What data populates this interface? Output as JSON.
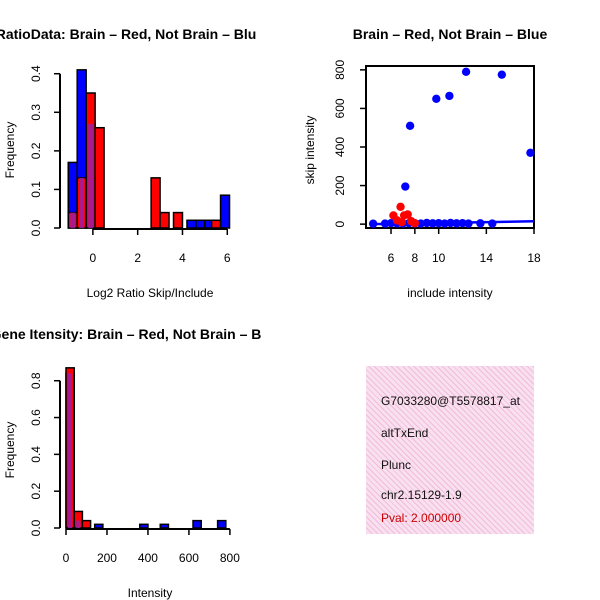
{
  "chart_data": [
    {
      "type": "histogram",
      "title": "RatioData: Brain – Red, Not Brain – Blu",
      "xlabel": "Log2 Ratio Skip/Include",
      "ylabel": "Frequency",
      "xlim": [
        -1.2,
        6.3
      ],
      "ylim": [
        0,
        0.42
      ],
      "xticks": [
        0,
        2,
        4,
        6
      ],
      "yticks": [
        0.0,
        0.1,
        0.2,
        0.3,
        0.4
      ],
      "series": [
        {
          "name": "Not Brain",
          "color": "#0000ff",
          "bins": [
            [
              -1.1,
              -0.7,
              0.17
            ],
            [
              -0.7,
              -0.3,
              0.41
            ],
            [
              -0.3,
              0.1,
              0.27
            ],
            [
              4.2,
              4.6,
              0.02
            ],
            [
              4.6,
              5.0,
              0.02
            ],
            [
              5.0,
              5.4,
              0.02
            ],
            [
              5.7,
              6.1,
              0.085
            ]
          ]
        },
        {
          "name": "Brain",
          "color": "#ff0000",
          "bins": [
            [
              -1.1,
              -0.7,
              0.04
            ],
            [
              -0.7,
              -0.3,
              0.13
            ],
            [
              -0.3,
              0.1,
              0.35
            ],
            [
              0.1,
              0.5,
              0.26
            ],
            [
              2.6,
              3.0,
              0.13
            ],
            [
              3.0,
              3.4,
              0.04
            ],
            [
              3.6,
              4.0,
              0.04
            ],
            [
              5.3,
              5.7,
              0.02
            ]
          ]
        }
      ]
    },
    {
      "type": "scatter",
      "title": "Brain – Red, Not Brain – Blue",
      "xlabel": "include intensity",
      "ylabel": "skip intensity",
      "xlim": [
        3.9,
        18.0
      ],
      "ylim": [
        -20,
        820
      ],
      "xticks": [
        6,
        8,
        10,
        14,
        18
      ],
      "yticks": [
        0,
        200,
        400,
        600,
        800
      ],
      "series": [
        {
          "name": "Not Brain",
          "color": "#0000ff",
          "points": [
            [
              4.5,
              2
            ],
            [
              5.5,
              3
            ],
            [
              6.0,
              5
            ],
            [
              6.5,
              4
            ],
            [
              7.0,
              3
            ],
            [
              7.5,
              5
            ],
            [
              8.0,
              4
            ],
            [
              8.5,
              3
            ],
            [
              9.0,
              6
            ],
            [
              9.5,
              4
            ],
            [
              10.0,
              5
            ],
            [
              10.5,
              3
            ],
            [
              11.0,
              6
            ],
            [
              11.5,
              4
            ],
            [
              12.0,
              5
            ],
            [
              12.5,
              3
            ],
            [
              13.5,
              4
            ],
            [
              14.5,
              3
            ],
            [
              7.2,
              195
            ],
            [
              7.6,
              510
            ],
            [
              9.8,
              650
            ],
            [
              10.9,
              665
            ],
            [
              12.3,
              790
            ],
            [
              15.3,
              775
            ],
            [
              17.7,
              370
            ]
          ]
        },
        {
          "name": "Brain",
          "color": "#ff0000",
          "points": [
            [
              6.2,
              45
            ],
            [
              6.5,
              20
            ],
            [
              6.8,
              90
            ],
            [
              7.1,
              45
            ],
            [
              7.4,
              50
            ],
            [
              7.7,
              15
            ],
            [
              8.0,
              5
            ],
            [
              6.9,
              10
            ]
          ]
        }
      ],
      "fit_line": {
        "color": "#0000ff",
        "x": [
          4.3,
          18.0
        ],
        "y": [
          0,
          15
        ]
      }
    },
    {
      "type": "histogram",
      "title": "Gene Itensity: Brain – Red, Not Brain – B",
      "xlabel": "Intensity",
      "ylabel": "Frequency",
      "xlim": [
        0,
        820
      ],
      "ylim": [
        0,
        0.88
      ],
      "xticks": [
        0,
        200,
        400,
        600,
        800
      ],
      "yticks": [
        0.0,
        0.2,
        0.4,
        0.6,
        0.8
      ],
      "series": [
        {
          "name": "Not Brain",
          "color": "#0000ff",
          "bins": [
            [
              0,
              40,
              0.84
            ],
            [
              40,
              80,
              0.04
            ],
            [
              140,
              180,
              0.02
            ],
            [
              360,
              400,
              0.02
            ],
            [
              460,
              500,
              0.02
            ],
            [
              620,
              660,
              0.04
            ],
            [
              740,
              780,
              0.04
            ]
          ]
        },
        {
          "name": "Brain",
          "color": "#ff0000",
          "bins": [
            [
              0,
              40,
              0.87
            ],
            [
              40,
              80,
              0.09
            ],
            [
              80,
              120,
              0.04
            ]
          ]
        }
      ]
    }
  ],
  "info_panel": {
    "lines": [
      "G7033280@T5578817_at",
      "altTxEnd",
      "Plunc",
      "chr2.15129-1.9"
    ],
    "pval": "Pval: 2.000000"
  }
}
